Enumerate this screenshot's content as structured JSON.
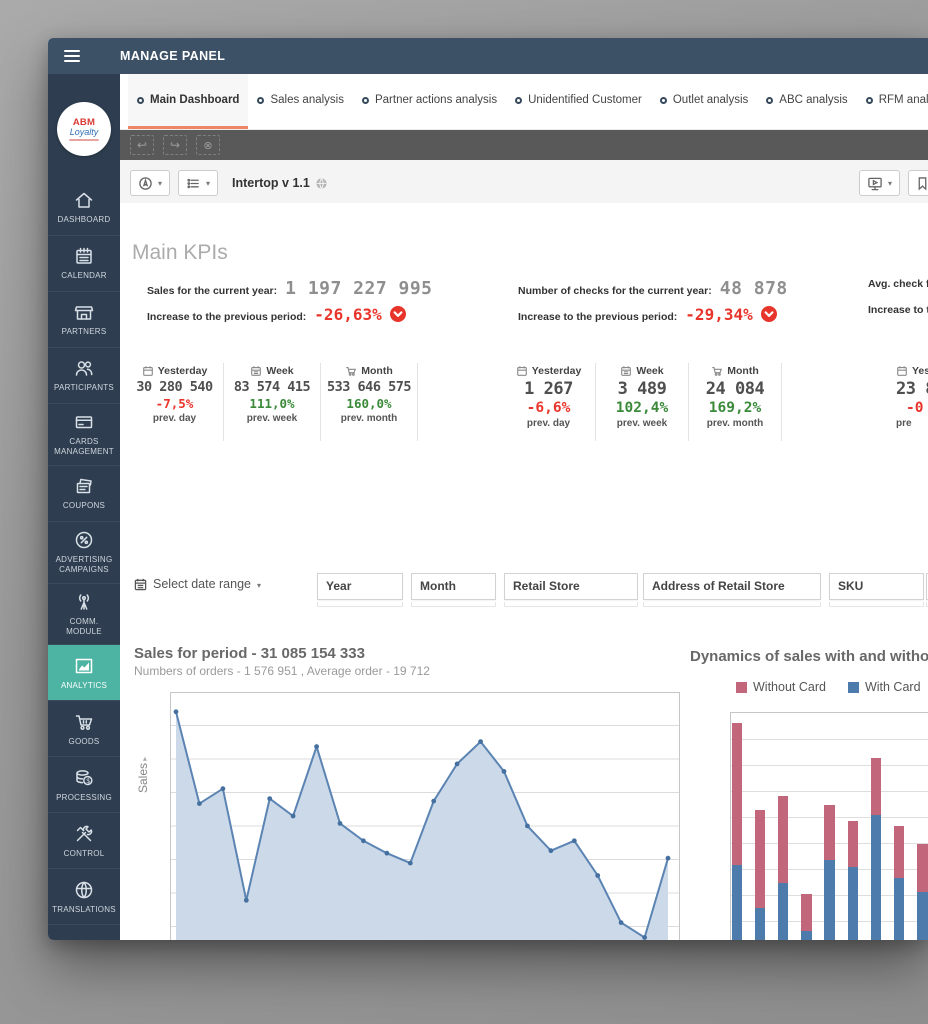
{
  "topbar": {
    "title": "MANAGE PANEL"
  },
  "tabs": {
    "items": [
      {
        "label": "Main Dashboard",
        "active": true
      },
      {
        "label": "Sales analysis",
        "active": false
      },
      {
        "label": "Partner actions analysis",
        "active": false
      },
      {
        "label": "Unidentified Customer",
        "active": false
      },
      {
        "label": "Outlet analysis",
        "active": false
      },
      {
        "label": "ABC analysis",
        "active": false
      },
      {
        "label": "RFM analysis",
        "active": false
      }
    ]
  },
  "toolbar": {
    "app_name": "Intertop v 1.1"
  },
  "sidebar": {
    "logo_line1": "ABM",
    "logo_line2": "Loyalty",
    "items": [
      {
        "label": "DASHBOARD",
        "active": false
      },
      {
        "label": "CALENDAR",
        "active": false
      },
      {
        "label": "PARTNERS",
        "active": false
      },
      {
        "label": "PARTICIPANTS",
        "active": false
      },
      {
        "label": "CARDS MANAGEMENT",
        "active": false
      },
      {
        "label": "COUPONS",
        "active": false
      },
      {
        "label": "ADVERTISING CAMPAIGNS",
        "active": false
      },
      {
        "label": "COMM. MODULE",
        "active": false
      },
      {
        "label": "ANALYTICS",
        "active": true
      },
      {
        "label": "GOODS",
        "active": false
      },
      {
        "label": "PROCESSING",
        "active": false
      },
      {
        "label": "CONTROL",
        "active": false
      },
      {
        "label": "TRANSLATIONS",
        "active": false
      },
      {
        "label": "",
        "active": false
      }
    ]
  },
  "kpis": {
    "title": "Main KPIs",
    "columns": [
      {
        "metric_label": "Sales for the current year:",
        "metric_value": "1 197 227 995",
        "change_label": "Increase to the previous period:",
        "change_value": "-26,63%",
        "direction": "down"
      },
      {
        "metric_label": "Number of checks for the current year:",
        "metric_value": "48 878",
        "change_label": "Increase to the previous period:",
        "change_value": "-29,34%",
        "direction": "down"
      },
      {
        "metric_label": "Avg. check for the current year:",
        "metric_value": "",
        "change_label": "Increase to the previous period:",
        "change_value": "",
        "direction": "down"
      }
    ],
    "cards": [
      {
        "period": "Yesterday",
        "icon": "calendar-day",
        "value": "30 280 540",
        "change": "-7,5%",
        "trend": "down",
        "compare": "prev. day"
      },
      {
        "period": "Week",
        "icon": "calendar-week",
        "value": "83 574 415",
        "change": "111,0%",
        "trend": "up",
        "compare": "prev. week"
      },
      {
        "period": "Month",
        "icon": "cart",
        "value": "533 646 575",
        "change": "160,0%",
        "trend": "up",
        "compare": "prev. month"
      },
      {
        "period": "Yesterday",
        "icon": "calendar-day",
        "value": "1 267",
        "change": "-6,6%",
        "trend": "down",
        "compare": "prev. day"
      },
      {
        "period": "Week",
        "icon": "calendar-week",
        "value": "3 489",
        "change": "102,4%",
        "trend": "up",
        "compare": "prev. week"
      },
      {
        "period": "Month",
        "icon": "cart",
        "value": "24 084",
        "change": "169,2%",
        "trend": "up",
        "compare": "prev. month"
      },
      {
        "period": "Yesterday",
        "icon": "calendar-day",
        "value": "23 8",
        "change": "-0",
        "trend": "down",
        "compare": "pre"
      }
    ]
  },
  "filters": {
    "date_range_label": "Select date range",
    "fields": [
      {
        "label": "Year"
      },
      {
        "label": "Month"
      },
      {
        "label": "Retail Store"
      },
      {
        "label": "Address of Retail Store"
      },
      {
        "label": "SKU"
      },
      {
        "label": ""
      }
    ]
  },
  "chart_data": [
    {
      "type": "area",
      "title": "Sales for period - 31 085 154 333",
      "subtitle": "Numbers of orders - 1 576 951 , Average order - 19 712",
      "ylabel": "Sales",
      "axis_note": "no axis tick labels visible; values are percent of visible plot height, chart cropped at bottom",
      "grid": true,
      "values": [
        92,
        55,
        61,
        16,
        57,
        50,
        78,
        47,
        40,
        35,
        31,
        56,
        71,
        80,
        68,
        46,
        36,
        40,
        26,
        7,
        1,
        33
      ]
    },
    {
      "type": "stacked-bar",
      "title": "Dynamics of sales with and without cards",
      "legend_position": "top",
      "legend_items": [
        {
          "label": "Without Card",
          "color": "#c2677b"
        },
        {
          "label": "With Card",
          "color": "#4d7cac"
        }
      ],
      "axis_note": "axes cropped; values are percent of visible plot height, chart cropped at bottom and right",
      "grid": true,
      "series": [
        {
          "name": "With Card",
          "color": "#4d7cac",
          "values": [
            33,
            14,
            25,
            4,
            35,
            32,
            55,
            27,
            21
          ]
        },
        {
          "name": "Without Card",
          "color": "#c2677b",
          "values": [
            62,
            43,
            38,
            16,
            24,
            20,
            25,
            23,
            21
          ]
        }
      ]
    }
  ],
  "colors": {
    "topbar": "#3d5166",
    "sidebar": "#2e3e50",
    "accent_teal": "#4db3a2",
    "tab_accent": "#ee8566",
    "negative": "#e8352b",
    "positive": "#3a8a3a",
    "line": "#5b84b3",
    "line_fill": "#ccd9e9",
    "bar_blue": "#4d7cac",
    "bar_red": "#c2677b"
  }
}
